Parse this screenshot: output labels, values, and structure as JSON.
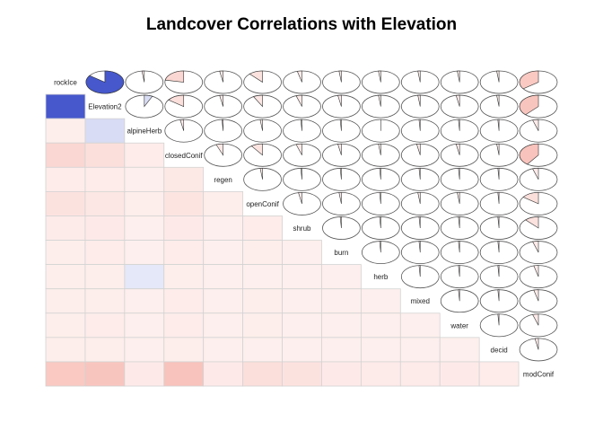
{
  "chart_data": {
    "type": "heatmap",
    "subtype": "corrgram",
    "title": "Landcover Correlations with Elevation",
    "lower_panel": "shade",
    "upper_panel": "pie",
    "colors": {
      "positive": "#2a3fc4",
      "negative": "#f08070",
      "pie_stroke": "#555555",
      "grid": "#d3d3d3"
    },
    "variables": [
      "rockIce",
      "Elevation2",
      "alpineHerb",
      "closedConif",
      "regen",
      "openConif",
      "shrub",
      "burn",
      "herb",
      "mixed",
      "water",
      "decid",
      "modConif"
    ],
    "correlations": [
      [
        1.0,
        0.85,
        -0.02,
        -0.22,
        -0.03,
        -0.12,
        -0.04,
        -0.02,
        -0.02,
        -0.02,
        -0.02,
        -0.02,
        -0.35
      ],
      [
        0.85,
        1.0,
        0.07,
        -0.15,
        -0.03,
        -0.08,
        -0.05,
        -0.03,
        -0.02,
        -0.02,
        -0.03,
        -0.02,
        -0.38
      ],
      [
        -0.02,
        0.07,
        1.0,
        -0.03,
        -0.01,
        -0.02,
        -0.01,
        -0.01,
        0.0,
        -0.01,
        -0.01,
        -0.01,
        -0.05
      ],
      [
        -0.22,
        -0.15,
        -0.03,
        1.0,
        -0.06,
        -0.1,
        -0.05,
        -0.03,
        -0.02,
        -0.03,
        -0.03,
        -0.02,
        -0.4
      ],
      [
        -0.03,
        -0.03,
        -0.01,
        -0.06,
        1.0,
        -0.02,
        -0.01,
        -0.01,
        -0.01,
        -0.01,
        -0.01,
        -0.01,
        -0.05
      ],
      [
        -0.12,
        -0.08,
        -0.02,
        -0.1,
        -0.02,
        1.0,
        -0.03,
        -0.02,
        -0.01,
        -0.02,
        -0.02,
        -0.01,
        -0.15
      ],
      [
        -0.04,
        -0.05,
        -0.01,
        -0.05,
        -0.01,
        -0.03,
        1.0,
        -0.01,
        -0.01,
        -0.01,
        -0.01,
        -0.01,
        -0.12
      ],
      [
        -0.02,
        -0.03,
        -0.01,
        -0.03,
        -0.01,
        -0.02,
        -0.01,
        1.0,
        -0.01,
        -0.01,
        -0.01,
        -0.01,
        -0.05
      ],
      [
        -0.02,
        -0.02,
        0.0,
        -0.02,
        -0.01,
        -0.01,
        -0.01,
        -0.01,
        1.0,
        -0.01,
        -0.01,
        -0.01,
        -0.04
      ],
      [
        -0.02,
        -0.02,
        -0.01,
        -0.03,
        -0.01,
        -0.02,
        -0.01,
        -0.01,
        -0.01,
        1.0,
        -0.01,
        -0.01,
        -0.04
      ],
      [
        -0.02,
        -0.03,
        -0.01,
        -0.03,
        -0.01,
        -0.02,
        -0.01,
        -0.01,
        -0.01,
        -0.01,
        1.0,
        -0.01,
        -0.05
      ],
      [
        -0.02,
        -0.02,
        -0.01,
        -0.02,
        -0.01,
        -0.01,
        -0.01,
        -0.01,
        -0.01,
        -0.01,
        -0.01,
        1.0,
        -0.03
      ],
      [
        -0.35,
        -0.38,
        -0.05,
        -0.4,
        -0.05,
        -0.15,
        -0.12,
        -0.05,
        -0.04,
        -0.04,
        -0.05,
        -0.03,
        1.0
      ]
    ]
  }
}
